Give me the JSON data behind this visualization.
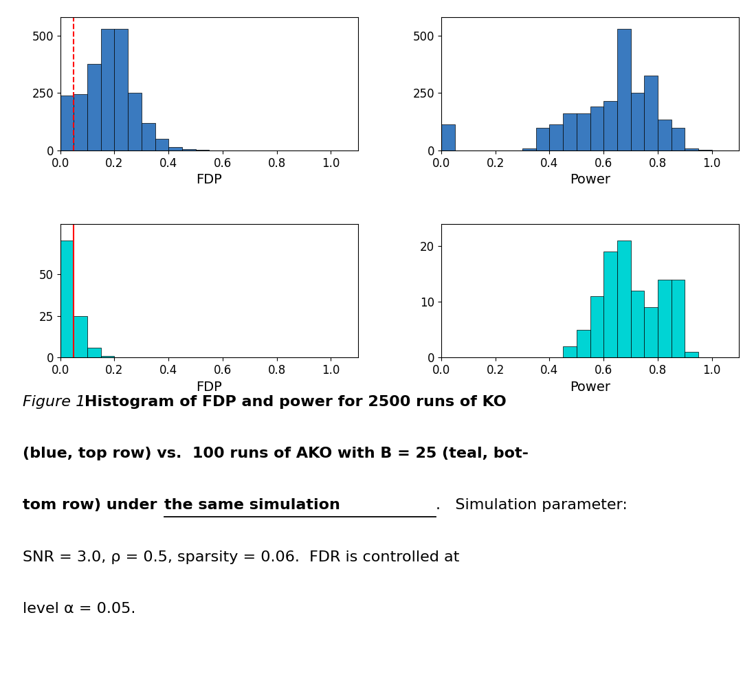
{
  "ko_fdp_counts": [
    240,
    245,
    375,
    530,
    530,
    250,
    120,
    50,
    15,
    5,
    2,
    1,
    0,
    0,
    0,
    0,
    0,
    0,
    0,
    0,
    0
  ],
  "ko_power_counts": [
    115,
    0,
    0,
    0,
    0,
    0,
    10,
    100,
    115,
    160,
    160,
    190,
    215,
    530,
    250,
    325,
    135,
    100,
    10,
    3,
    0
  ],
  "ako_fdp_counts": [
    70,
    25,
    6,
    1,
    0,
    0,
    0,
    0,
    0,
    0,
    0,
    0,
    0,
    0,
    0,
    0,
    0,
    0,
    0,
    0,
    0
  ],
  "ako_power_counts": [
    0,
    0,
    0,
    0,
    0,
    0,
    0,
    0,
    0,
    2,
    5,
    11,
    19,
    21,
    12,
    9,
    14,
    14,
    1,
    0,
    0
  ],
  "bin_edges": [
    0.0,
    0.05,
    0.1,
    0.15,
    0.2,
    0.25,
    0.3,
    0.35,
    0.4,
    0.45,
    0.5,
    0.55,
    0.6,
    0.65,
    0.7,
    0.75,
    0.8,
    0.85,
    0.9,
    0.95,
    1.0,
    1.05
  ],
  "ko_color": "#3a7abf",
  "ako_color": "#00d4d4",
  "vline_x": 0.05,
  "xlim": [
    0.0,
    1.1
  ],
  "xlabel_fdp": "FDP",
  "xlabel_power": "Power",
  "ko_fdp_yticks": [
    0,
    250,
    500
  ],
  "ko_fdp_ylim": [
    0,
    580
  ],
  "ko_power_yticks": [
    0,
    250,
    500
  ],
  "ko_power_ylim": [
    0,
    580
  ],
  "ako_fdp_yticks": [
    0,
    25,
    50
  ],
  "ako_fdp_ylim": [
    0,
    80
  ],
  "ako_power_yticks": [
    0,
    10,
    20
  ],
  "ako_power_ylim": [
    0,
    24
  ],
  "xticks": [
    0.0,
    0.2,
    0.4,
    0.6,
    0.8,
    1.0
  ],
  "bin_width": 0.05,
  "tick_fontsize": 12,
  "label_fontsize": 14
}
